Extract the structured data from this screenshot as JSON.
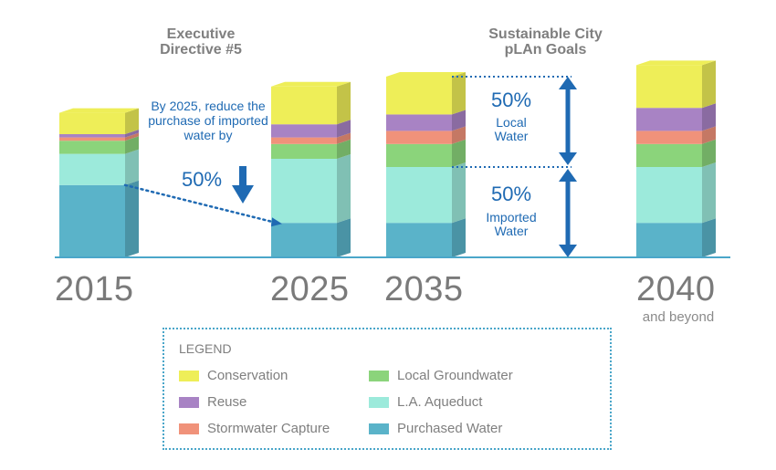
{
  "headings": {
    "directive": "Executive\nDirective #5",
    "plan": "Sustainable City\npLAn Goals"
  },
  "annotations": {
    "reduce_text": "By 2025, reduce the purchase of imported water by",
    "reduce_pct": "50%",
    "local_pct": "50%",
    "local_label": "Local\nWater",
    "imported_pct": "50%",
    "imported_label": "Imported\nWater"
  },
  "colors": {
    "Conservation": "#eeee58",
    "Reuse": "#a883c4",
    "Stormwater Capture": "#f0927a",
    "Local Groundwater": "#8bd47b",
    "L.A. Aqueduct": "#9ceadb",
    "Purchased Water": "#5ab3c9",
    "arrow": "#1f6ab3",
    "axis": "#4aa6c9"
  },
  "chart_data": {
    "type": "bar",
    "stacked": true,
    "categories": [
      "2015",
      "2025",
      "2035",
      "2040"
    ],
    "category_sublabels": [
      "",
      "",
      "",
      "and beyond"
    ],
    "series": [
      {
        "name": "Purchased Water",
        "values": [
          44,
          21,
          21,
          21
        ]
      },
      {
        "name": "L.A. Aqueduct",
        "values": [
          19,
          39,
          34,
          34
        ]
      },
      {
        "name": "Local Groundwater",
        "values": [
          8,
          9,
          14,
          14
        ]
      },
      {
        "name": "Stormwater Capture",
        "values": [
          2,
          4,
          8,
          8
        ]
      },
      {
        "name": "Reuse",
        "values": [
          2,
          8,
          10,
          14
        ]
      },
      {
        "name": "Conservation",
        "values": [
          13,
          23,
          23,
          26
        ]
      }
    ],
    "ylim": [
      0,
      115
    ],
    "grid": false,
    "legend": {
      "title": "LEGEND",
      "position": "bottom"
    },
    "legend_order": [
      "Conservation",
      "Local Groundwater",
      "Reuse",
      "L.A. Aqueduct",
      "Stormwater Capture",
      "Purchased Water"
    ]
  }
}
